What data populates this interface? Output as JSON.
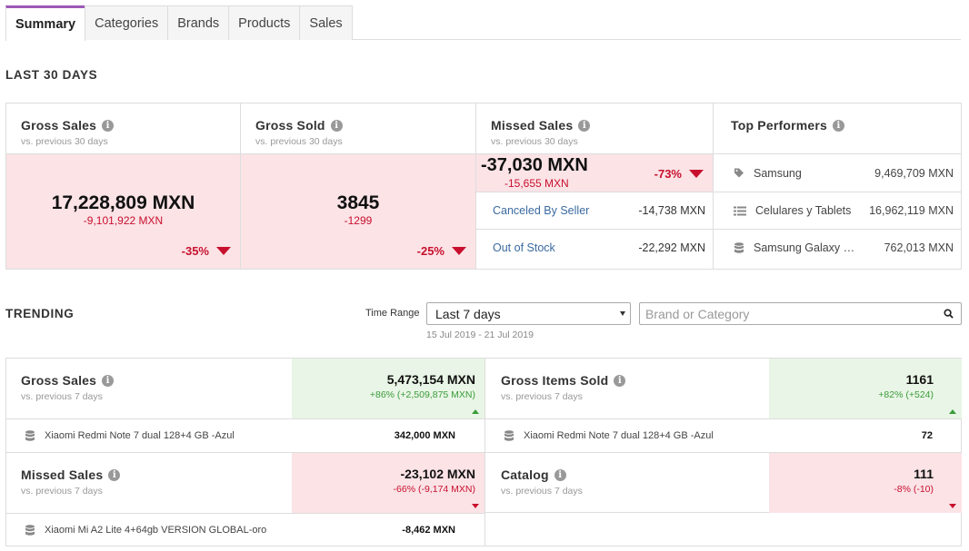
{
  "tabs": [
    "Summary",
    "Categories",
    "Brands",
    "Products",
    "Sales"
  ],
  "last30": {
    "title": "LAST 30 DAYS",
    "gross_sales": {
      "title": "Gross Sales",
      "sub": "vs. previous 30 days",
      "value": "17,228,809 MXN",
      "delta": "-9,101,922 MXN",
      "pct": "-35%"
    },
    "gross_sold": {
      "title": "Gross Sold",
      "sub": "vs. previous 30 days",
      "value": "3845",
      "delta": "-1299",
      "pct": "-25%"
    },
    "missed_sales": {
      "title": "Missed Sales",
      "sub": "vs. previous 30 days",
      "value": "-37,030 MXN",
      "delta": "-15,655 MXN",
      "pct": "-73%",
      "rows": [
        {
          "label": "Canceled By Seller",
          "value": "-14,738 MXN"
        },
        {
          "label": "Out of Stock",
          "value": "-22,292 MXN"
        }
      ]
    },
    "top_performers": {
      "title": "Top Performers",
      "rows": [
        {
          "icon": "tag-icon",
          "label": "Samsung",
          "value": "9,469,709 MXN"
        },
        {
          "icon": "list-icon",
          "label": "Celulares y Tablets",
          "value": "16,962,119 MXN"
        },
        {
          "icon": "database-icon",
          "label": "Samsung Galaxy …",
          "value": "762,013 MXN"
        }
      ]
    }
  },
  "trending": {
    "title": "TRENDING",
    "time_range_label": "Time Range",
    "time_range_value": "Last 7 days",
    "date_range": "15 Jul 2019 - 21 Jul 2019",
    "search_placeholder": "Brand or Category",
    "cards": {
      "gross_sales": {
        "title": "Gross Sales",
        "sub": "vs. previous 7 days",
        "value": "5,473,154 MXN",
        "delta": "+86% (+2,509,875 MXN)",
        "top_name": "Xiaomi Redmi Note 7 dual 128+4 GB -Azul",
        "top_value": "342,000 MXN"
      },
      "gross_items": {
        "title": "Gross Items Sold",
        "sub": "vs. previous 7 days",
        "value": "1161",
        "delta": "+82% (+524)",
        "top_name": "Xiaomi Redmi Note 7 dual 128+4 GB -Azul",
        "top_value": "72"
      },
      "missed_sales": {
        "title": "Missed Sales",
        "sub": "vs. previous 7 days",
        "value": "-23,102 MXN",
        "delta": "-66% (-9,174 MXN)",
        "top_name": "Xiaomi Mi A2 Lite 4+64gb VERSION GLOBAL-oro",
        "top_value": "-8,462 MXN"
      },
      "catalog": {
        "title": "Catalog",
        "sub": "vs. previous 7 days",
        "value": "111",
        "delta": "-8% (-10)"
      }
    }
  },
  "colors": {
    "accent": "#9b59b6",
    "negative": "#c8102e",
    "positive": "#3a9c3a",
    "negative_bg": "#fbe3e6",
    "positive_bg": "#e9f5e6",
    "link": "#3b6aa0"
  }
}
